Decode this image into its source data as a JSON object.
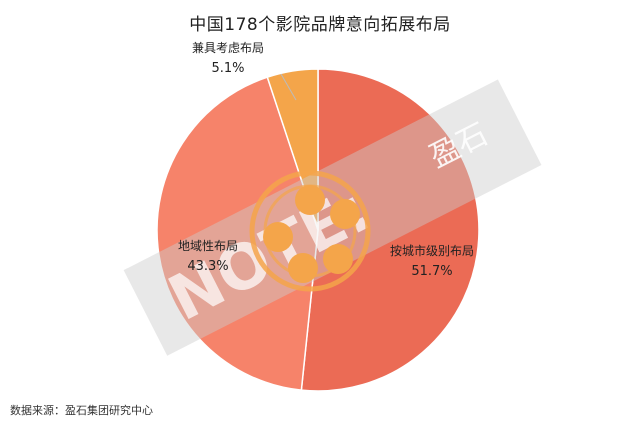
{
  "chart_data": {
    "type": "pie",
    "title": "中国178个影院品牌意向拓展布局",
    "slices": [
      {
        "label": "按城市级别布局",
        "value": 51.7,
        "display": "51.7%",
        "color": "#EB6B55"
      },
      {
        "label": "地域性布局",
        "value": 43.3,
        "display": "43.3%",
        "color": "#F6836A"
      },
      {
        "label": "兼具考虑布局",
        "value": 5.1,
        "display": "5.1%",
        "color": "#F4A54A"
      }
    ]
  },
  "watermark": {
    "text": "NOTE:",
    "brand": "盈石"
  },
  "center_icon": {
    "name": "film-reel-icon",
    "color": "#F4A54A"
  },
  "source": "数据来源：盈石集团研究中心"
}
